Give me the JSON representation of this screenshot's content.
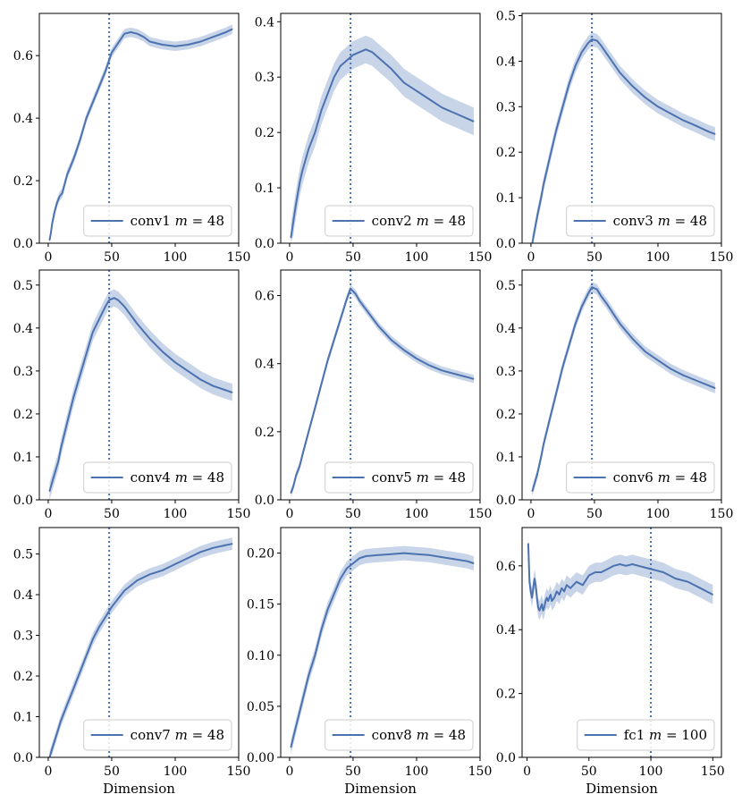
{
  "figure": {
    "shared_xlabel": "Dimension",
    "line_color": "#4c72b0",
    "band_color": "#c8d4e8"
  },
  "chart_data": [
    {
      "type": "line",
      "name": "conv1",
      "legend": {
        "label": "conv1",
        "m_text": "m",
        "m_value": "= 48"
      },
      "x": [
        1,
        2,
        3,
        5,
        7,
        9,
        11,
        13,
        15,
        17,
        20,
        25,
        30,
        35,
        40,
        45,
        50,
        55,
        60,
        65,
        70,
        75,
        80,
        90,
        100,
        110,
        120,
        130,
        140,
        145
      ],
      "y": [
        0.01,
        0.03,
        0.06,
        0.1,
        0.13,
        0.15,
        0.16,
        0.19,
        0.22,
        0.24,
        0.27,
        0.33,
        0.4,
        0.45,
        0.5,
        0.55,
        0.61,
        0.64,
        0.67,
        0.675,
        0.67,
        0.66,
        0.645,
        0.635,
        0.63,
        0.635,
        0.645,
        0.66,
        0.675,
        0.685
      ],
      "spread": 0.015,
      "vline_x": 48,
      "xlim": [
        -7,
        150
      ],
      "ylim": [
        0,
        0.735
      ],
      "xticks": [
        "0",
        "50",
        "100",
        "150"
      ],
      "xtick_values": [
        0,
        50,
        100,
        150
      ],
      "yticks": [
        "0.0",
        "0.2",
        "0.4",
        "0.6"
      ],
      "ytick_values": [
        0,
        0.2,
        0.4,
        0.6
      ],
      "xlabel": ""
    },
    {
      "type": "line",
      "name": "conv2",
      "legend": {
        "label": "conv2",
        "m_text": "m",
        "m_value": "= 48"
      },
      "x": [
        1,
        3,
        5,
        8,
        10,
        15,
        20,
        25,
        30,
        35,
        40,
        45,
        50,
        55,
        60,
        65,
        70,
        80,
        90,
        100,
        110,
        120,
        130,
        140,
        145
      ],
      "y": [
        0.01,
        0.04,
        0.07,
        0.11,
        0.13,
        0.17,
        0.2,
        0.24,
        0.27,
        0.3,
        0.32,
        0.33,
        0.34,
        0.345,
        0.35,
        0.345,
        0.335,
        0.315,
        0.29,
        0.275,
        0.26,
        0.245,
        0.235,
        0.225,
        0.22
      ],
      "spread": 0.025,
      "vline_x": 48,
      "xlim": [
        -7,
        150
      ],
      "ylim": [
        0,
        0.415
      ],
      "xticks": [
        "0",
        "50",
        "100",
        "150"
      ],
      "xtick_values": [
        0,
        50,
        100,
        150
      ],
      "yticks": [
        "0.0",
        "0.1",
        "0.2",
        "0.3",
        "0.4"
      ],
      "ytick_values": [
        0,
        0.1,
        0.2,
        0.3,
        0.4
      ],
      "xlabel": ""
    },
    {
      "type": "line",
      "name": "conv3",
      "legend": {
        "label": "conv3",
        "m_text": "m",
        "m_value": "= 48"
      },
      "x": [
        1,
        3,
        5,
        8,
        10,
        15,
        20,
        25,
        30,
        35,
        40,
        45,
        48,
        52,
        55,
        60,
        70,
        80,
        90,
        100,
        110,
        120,
        130,
        140,
        145
      ],
      "y": [
        0.0,
        0.03,
        0.06,
        0.1,
        0.13,
        0.19,
        0.25,
        0.3,
        0.35,
        0.39,
        0.42,
        0.44,
        0.448,
        0.445,
        0.435,
        0.415,
        0.375,
        0.345,
        0.32,
        0.3,
        0.285,
        0.27,
        0.258,
        0.245,
        0.24
      ],
      "spread": 0.015,
      "vline_x": 48,
      "xlim": [
        -7,
        150
      ],
      "ylim": [
        0,
        0.505
      ],
      "xticks": [
        "0",
        "50",
        "100",
        "150"
      ],
      "xtick_values": [
        0,
        50,
        100,
        150
      ],
      "yticks": [
        "0.0",
        "0.1",
        "0.2",
        "0.3",
        "0.4",
        "0.5"
      ],
      "ytick_values": [
        0,
        0.1,
        0.2,
        0.3,
        0.4,
        0.5
      ],
      "xlabel": ""
    },
    {
      "type": "line",
      "name": "conv4",
      "legend": {
        "label": "conv4",
        "m_text": "m",
        "m_value": "= 48"
      },
      "x": [
        1,
        3,
        5,
        8,
        10,
        15,
        20,
        25,
        30,
        35,
        40,
        45,
        48,
        52,
        55,
        60,
        70,
        80,
        90,
        100,
        110,
        120,
        130,
        140,
        145
      ],
      "y": [
        0.02,
        0.04,
        0.06,
        0.09,
        0.12,
        0.18,
        0.24,
        0.29,
        0.34,
        0.39,
        0.42,
        0.45,
        0.465,
        0.47,
        0.465,
        0.45,
        0.41,
        0.375,
        0.345,
        0.32,
        0.3,
        0.28,
        0.265,
        0.255,
        0.25
      ],
      "spread": 0.02,
      "vline_x": 48,
      "xlim": [
        -7,
        150
      ],
      "ylim": [
        0,
        0.535
      ],
      "xticks": [
        "0",
        "50",
        "100",
        "150"
      ],
      "xtick_values": [
        0,
        50,
        100,
        150
      ],
      "yticks": [
        "0.0",
        "0.1",
        "0.2",
        "0.3",
        "0.4",
        "0.5"
      ],
      "ytick_values": [
        0,
        0.1,
        0.2,
        0.3,
        0.4,
        0.5
      ],
      "xlabel": ""
    },
    {
      "type": "line",
      "name": "conv5",
      "legend": {
        "label": "conv5",
        "m_text": "m",
        "m_value": "= 48"
      },
      "x": [
        1,
        3,
        5,
        8,
        10,
        15,
        20,
        25,
        30,
        35,
        40,
        45,
        48,
        52,
        55,
        60,
        70,
        80,
        90,
        100,
        110,
        120,
        130,
        140,
        145
      ],
      "y": [
        0.02,
        0.04,
        0.07,
        0.1,
        0.13,
        0.2,
        0.27,
        0.34,
        0.41,
        0.47,
        0.53,
        0.59,
        0.62,
        0.605,
        0.585,
        0.56,
        0.51,
        0.47,
        0.44,
        0.415,
        0.395,
        0.38,
        0.37,
        0.36,
        0.355
      ],
      "spread": 0.012,
      "vline_x": 48,
      "xlim": [
        -7,
        150
      ],
      "ylim": [
        0,
        0.675
      ],
      "xticks": [
        "0",
        "50",
        "100",
        "150"
      ],
      "xtick_values": [
        0,
        50,
        100,
        150
      ],
      "yticks": [
        "0.0",
        "0.2",
        "0.4",
        "0.6"
      ],
      "ytick_values": [
        0,
        0.2,
        0.4,
        0.6
      ],
      "xlabel": ""
    },
    {
      "type": "line",
      "name": "conv6",
      "legend": {
        "label": "conv6",
        "m_text": "m",
        "m_value": "= 48"
      },
      "x": [
        1,
        3,
        5,
        8,
        10,
        15,
        20,
        25,
        30,
        35,
        40,
        45,
        48,
        52,
        55,
        60,
        70,
        80,
        90,
        100,
        110,
        120,
        130,
        140,
        145
      ],
      "y": [
        0.02,
        0.04,
        0.06,
        0.1,
        0.13,
        0.19,
        0.25,
        0.31,
        0.36,
        0.41,
        0.45,
        0.48,
        0.495,
        0.49,
        0.475,
        0.455,
        0.41,
        0.375,
        0.345,
        0.325,
        0.305,
        0.29,
        0.278,
        0.266,
        0.26
      ],
      "spread": 0.012,
      "vline_x": 48,
      "xlim": [
        -7,
        150
      ],
      "ylim": [
        0,
        0.535
      ],
      "xticks": [
        "0",
        "50",
        "100",
        "150"
      ],
      "xtick_values": [
        0,
        50,
        100,
        150
      ],
      "yticks": [
        "0.0",
        "0.1",
        "0.2",
        "0.3",
        "0.4",
        "0.5"
      ],
      "ytick_values": [
        0,
        0.1,
        0.2,
        0.3,
        0.4,
        0.5
      ],
      "xlabel": ""
    },
    {
      "type": "line",
      "name": "conv7",
      "legend": {
        "label": "conv7",
        "m_text": "m",
        "m_value": "= 48"
      },
      "x": [
        1,
        3,
        5,
        8,
        10,
        15,
        20,
        25,
        30,
        35,
        40,
        45,
        50,
        55,
        60,
        70,
        80,
        90,
        100,
        110,
        120,
        130,
        140,
        145
      ],
      "y": [
        0.0,
        0.02,
        0.04,
        0.07,
        0.09,
        0.13,
        0.17,
        0.21,
        0.25,
        0.29,
        0.32,
        0.345,
        0.37,
        0.39,
        0.41,
        0.435,
        0.45,
        0.46,
        0.475,
        0.49,
        0.505,
        0.515,
        0.522,
        0.525
      ],
      "spread": 0.015,
      "vline_x": 48,
      "xlim": [
        -7,
        150
      ],
      "ylim": [
        0,
        0.565
      ],
      "xticks": [
        "0",
        "50",
        "100",
        "150"
      ],
      "xtick_values": [
        0,
        50,
        100,
        150
      ],
      "yticks": [
        "0.0",
        "0.1",
        "0.2",
        "0.3",
        "0.4",
        "0.5"
      ],
      "ytick_values": [
        0,
        0.1,
        0.2,
        0.3,
        0.4,
        0.5
      ],
      "xlabel": "Dimension"
    },
    {
      "type": "line",
      "name": "conv8",
      "legend": {
        "label": "conv8",
        "m_text": "m",
        "m_value": "= 48"
      },
      "x": [
        1,
        3,
        5,
        8,
        10,
        15,
        20,
        25,
        30,
        35,
        40,
        45,
        50,
        55,
        60,
        70,
        80,
        90,
        100,
        110,
        120,
        130,
        140,
        145
      ],
      "y": [
        0.01,
        0.02,
        0.03,
        0.045,
        0.055,
        0.08,
        0.1,
        0.125,
        0.145,
        0.16,
        0.175,
        0.185,
        0.19,
        0.195,
        0.197,
        0.198,
        0.199,
        0.2,
        0.199,
        0.198,
        0.196,
        0.194,
        0.192,
        0.19
      ],
      "spread": 0.007,
      "vline_x": 48,
      "xlim": [
        -7,
        150
      ],
      "ylim": [
        0,
        0.225
      ],
      "xticks": [
        "0",
        "50",
        "100",
        "150"
      ],
      "xtick_values": [
        0,
        50,
        100,
        150
      ],
      "yticks": [
        "0.00",
        "0.05",
        "0.10",
        "0.15",
        "0.20"
      ],
      "ytick_values": [
        0,
        0.05,
        0.1,
        0.15,
        0.2
      ],
      "xlabel": "Dimension"
    },
    {
      "type": "line",
      "name": "fc1",
      "legend": {
        "label": "fc1",
        "m_text": "m",
        "m_value": "= 100"
      },
      "x": [
        1,
        2,
        3,
        4,
        5,
        6,
        7,
        8,
        9,
        10,
        11,
        12,
        13,
        14,
        15,
        16,
        17,
        18,
        19,
        20,
        22,
        24,
        26,
        28,
        30,
        32,
        35,
        40,
        45,
        50,
        55,
        60,
        65,
        70,
        75,
        80,
        85,
        90,
        95,
        100,
        105,
        110,
        115,
        120,
        125,
        130,
        135,
        140,
        145,
        150
      ],
      "y": [
        0.67,
        0.55,
        0.52,
        0.5,
        0.53,
        0.56,
        0.54,
        0.5,
        0.47,
        0.46,
        0.47,
        0.48,
        0.46,
        0.47,
        0.49,
        0.5,
        0.49,
        0.5,
        0.51,
        0.49,
        0.5,
        0.52,
        0.51,
        0.53,
        0.52,
        0.54,
        0.53,
        0.55,
        0.54,
        0.57,
        0.58,
        0.58,
        0.59,
        0.6,
        0.605,
        0.6,
        0.605,
        0.6,
        0.595,
        0.59,
        0.585,
        0.58,
        0.57,
        0.56,
        0.555,
        0.55,
        0.54,
        0.53,
        0.52,
        0.51
      ],
      "spread": 0.03,
      "vline_x": 100,
      "xlim": [
        -4,
        157
      ],
      "ylim": [
        0,
        0.72
      ],
      "xticks": [
        "0",
        "50",
        "100",
        "150"
      ],
      "xtick_values": [
        0,
        50,
        100,
        150
      ],
      "yticks": [
        "0.0",
        "0.2",
        "0.4",
        "0.6"
      ],
      "ytick_values": [
        0,
        0.2,
        0.4,
        0.6
      ],
      "xlabel": "Dimension"
    }
  ]
}
